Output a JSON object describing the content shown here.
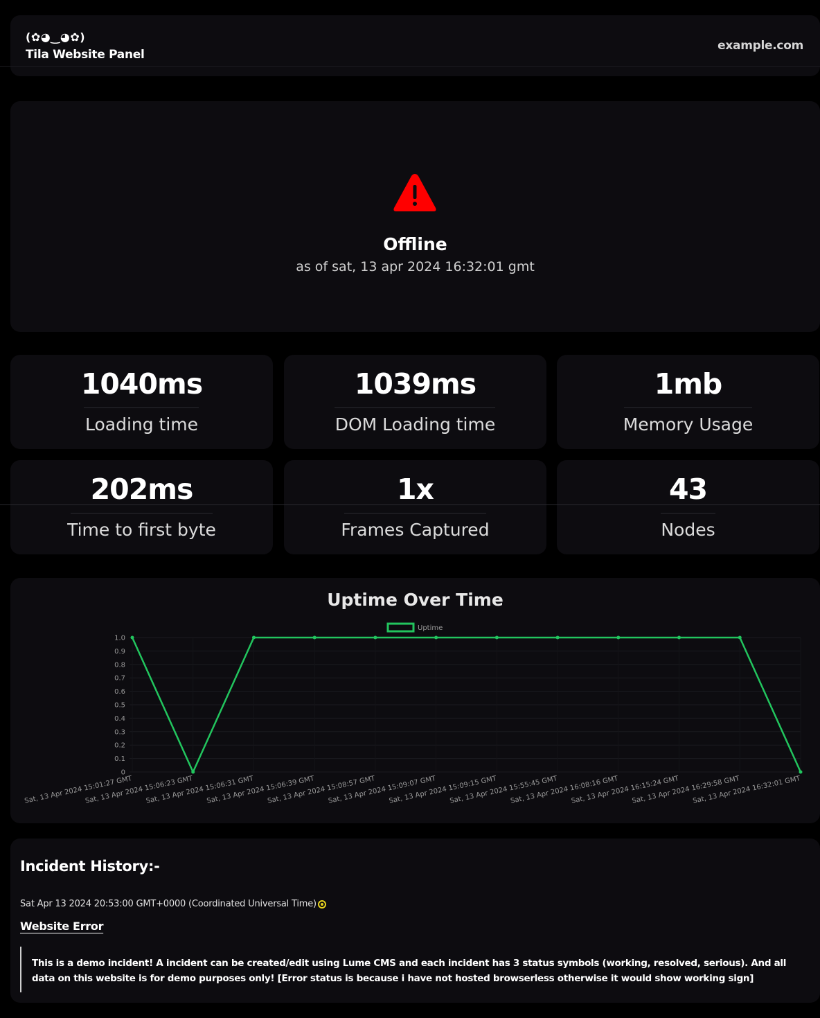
{
  "header": {
    "logo": "(✿◕‿◕✿)",
    "panel_title": "Tila Website Panel",
    "site_link": "example.com"
  },
  "status": {
    "icon": "warning-triangle-icon",
    "icon_color": "#ff0000",
    "text": "Offline",
    "as_of": "as of sat, 13 apr 2024 16:32:01 gmt"
  },
  "metrics": [
    {
      "value": "1040ms",
      "label": "Loading time"
    },
    {
      "value": "1039ms",
      "label": "DOM Loading time"
    },
    {
      "value": "1mb",
      "label": "Memory Usage"
    },
    {
      "value": "202ms",
      "label": "Time to first byte"
    },
    {
      "value": "1x",
      "label": "Frames Captured"
    },
    {
      "value": "43",
      "label": "Nodes"
    }
  ],
  "chart_data": {
    "type": "line",
    "title": "Uptime Over Time",
    "categories": [
      "Sat, 13 Apr 2024 15:01:27 GMT",
      "Sat, 13 Apr 2024 15:06:23 GMT",
      "Sat, 13 Apr 2024 15:06:31 GMT",
      "Sat, 13 Apr 2024 15:06:39 GMT",
      "Sat, 13 Apr 2024 15:08:57 GMT",
      "Sat, 13 Apr 2024 15:09:07 GMT",
      "Sat, 13 Apr 2024 15:09:15 GMT",
      "Sat, 13 Apr 2024 15:55:45 GMT",
      "Sat, 13 Apr 2024 16:08:16 GMT",
      "Sat, 13 Apr 2024 16:15:24 GMT",
      "Sat, 13 Apr 2024 16:29:58 GMT",
      "Sat, 13 Apr 2024 16:32:01 GMT"
    ],
    "series": [
      {
        "name": "Uptime",
        "values": [
          1,
          0,
          1,
          1,
          1,
          1,
          1,
          1,
          1,
          1,
          1,
          0
        ]
      }
    ],
    "yticks": [
      "1.0",
      "0.9",
      "0.8",
      "0.7",
      "0.6",
      "0.5",
      "0.4",
      "0.3",
      "0.2",
      "0.1",
      "0"
    ],
    "ylim": [
      0,
      1
    ],
    "legend": "top-center",
    "line_color": "#22c55e",
    "grid": true
  },
  "incidents": {
    "heading": "Incident History:-",
    "items": [
      {
        "date": "Sat Apr 13 2024 20:53:00 GMT+0000 (Coordinated Universal Time)",
        "status_icon": "working-status-icon",
        "status_color": "#e6d21e",
        "title": "Website Error",
        "description": "This is a demo incident! A incident can be created/edit using Lume CMS and each incident has 3 status symbols (working, resolved, serious). And all data on this website is for demo purposes only! [Error status is because i have not hosted browserless otherwise it would show working sign]"
      }
    ]
  }
}
